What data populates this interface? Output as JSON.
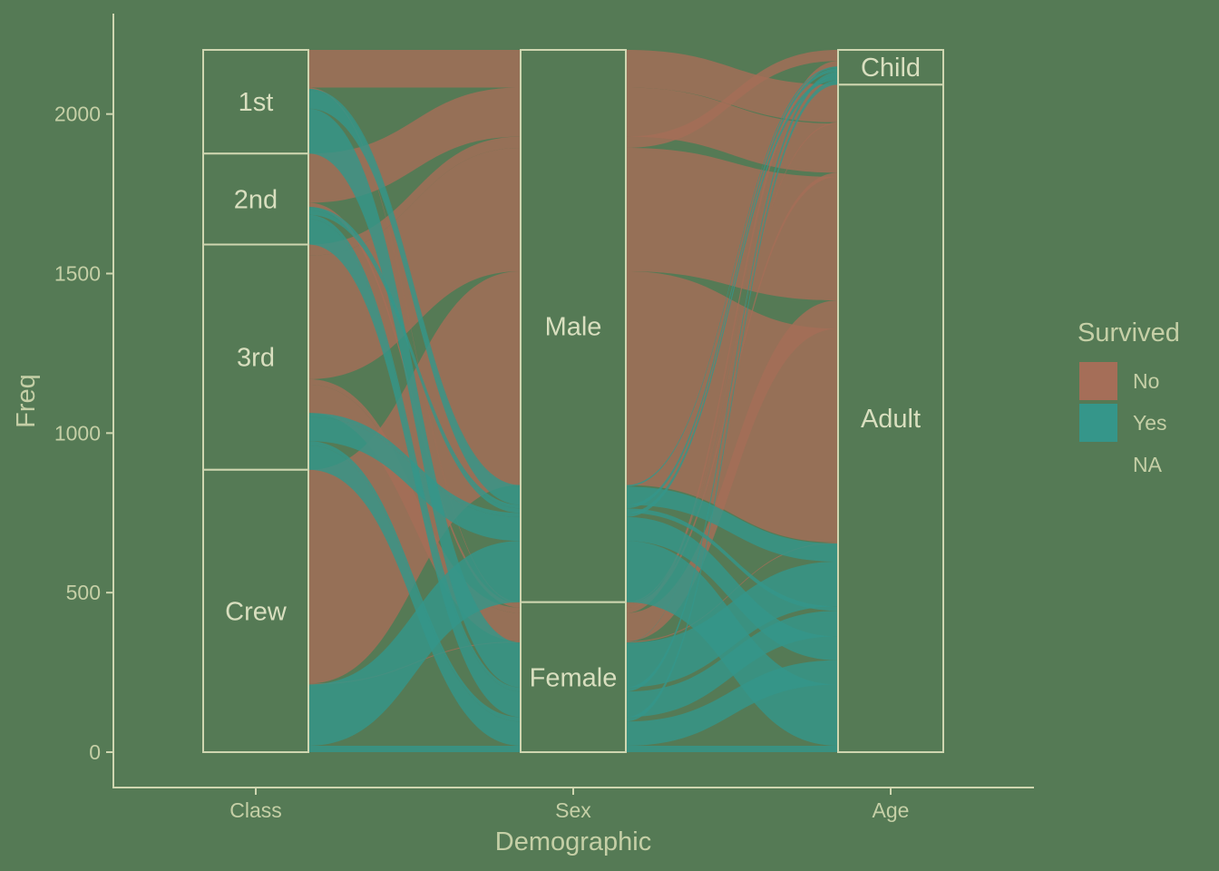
{
  "chart_data": {
    "type": "alluvial",
    "title": "",
    "xlabel": "Demographic",
    "ylabel": "Freq",
    "ylim": [
      0,
      2201
    ],
    "y_ticks": [
      0,
      500,
      1000,
      1500,
      2000
    ],
    "axes": [
      "Class",
      "Sex",
      "Age"
    ],
    "strata": {
      "Class": [
        "1st",
        "2nd",
        "3rd",
        "Crew"
      ],
      "Sex": [
        "Male",
        "Female"
      ],
      "Age": [
        "Child",
        "Adult"
      ]
    },
    "legend": {
      "title": "Survived",
      "position": "right",
      "entries": [
        {
          "label": "No",
          "color": "#a56e58"
        },
        {
          "label": "Yes",
          "color": "#35968a"
        },
        {
          "label": "NA",
          "color": ""
        }
      ]
    },
    "flows": [
      {
        "Class": "1st",
        "Sex": "Male",
        "Age": "Child",
        "Survived": "No",
        "Freq": 0
      },
      {
        "Class": "2nd",
        "Sex": "Male",
        "Age": "Child",
        "Survived": "No",
        "Freq": 0
      },
      {
        "Class": "3rd",
        "Sex": "Male",
        "Age": "Child",
        "Survived": "No",
        "Freq": 35
      },
      {
        "Class": "Crew",
        "Sex": "Male",
        "Age": "Child",
        "Survived": "No",
        "Freq": 0
      },
      {
        "Class": "1st",
        "Sex": "Female",
        "Age": "Child",
        "Survived": "No",
        "Freq": 0
      },
      {
        "Class": "2nd",
        "Sex": "Female",
        "Age": "Child",
        "Survived": "No",
        "Freq": 0
      },
      {
        "Class": "3rd",
        "Sex": "Female",
        "Age": "Child",
        "Survived": "No",
        "Freq": 17
      },
      {
        "Class": "Crew",
        "Sex": "Female",
        "Age": "Child",
        "Survived": "No",
        "Freq": 0
      },
      {
        "Class": "1st",
        "Sex": "Male",
        "Age": "Adult",
        "Survived": "No",
        "Freq": 118
      },
      {
        "Class": "2nd",
        "Sex": "Male",
        "Age": "Adult",
        "Survived": "No",
        "Freq": 154
      },
      {
        "Class": "3rd",
        "Sex": "Male",
        "Age": "Adult",
        "Survived": "No",
        "Freq": 387
      },
      {
        "Class": "Crew",
        "Sex": "Male",
        "Age": "Adult",
        "Survived": "No",
        "Freq": 670
      },
      {
        "Class": "1st",
        "Sex": "Female",
        "Age": "Adult",
        "Survived": "No",
        "Freq": 4
      },
      {
        "Class": "2nd",
        "Sex": "Female",
        "Age": "Adult",
        "Survived": "No",
        "Freq": 13
      },
      {
        "Class": "3rd",
        "Sex": "Female",
        "Age": "Adult",
        "Survived": "No",
        "Freq": 89
      },
      {
        "Class": "Crew",
        "Sex": "Female",
        "Age": "Adult",
        "Survived": "No",
        "Freq": 3
      },
      {
        "Class": "1st",
        "Sex": "Male",
        "Age": "Child",
        "Survived": "Yes",
        "Freq": 5
      },
      {
        "Class": "2nd",
        "Sex": "Male",
        "Age": "Child",
        "Survived": "Yes",
        "Freq": 11
      },
      {
        "Class": "3rd",
        "Sex": "Male",
        "Age": "Child",
        "Survived": "Yes",
        "Freq": 13
      },
      {
        "Class": "Crew",
        "Sex": "Male",
        "Age": "Child",
        "Survived": "Yes",
        "Freq": 0
      },
      {
        "Class": "1st",
        "Sex": "Female",
        "Age": "Child",
        "Survived": "Yes",
        "Freq": 1
      },
      {
        "Class": "2nd",
        "Sex": "Female",
        "Age": "Child",
        "Survived": "Yes",
        "Freq": 13
      },
      {
        "Class": "3rd",
        "Sex": "Female",
        "Age": "Child",
        "Survived": "Yes",
        "Freq": 14
      },
      {
        "Class": "Crew",
        "Sex": "Female",
        "Age": "Child",
        "Survived": "Yes",
        "Freq": 0
      },
      {
        "Class": "1st",
        "Sex": "Male",
        "Age": "Adult",
        "Survived": "Yes",
        "Freq": 57
      },
      {
        "Class": "2nd",
        "Sex": "Male",
        "Age": "Adult",
        "Survived": "Yes",
        "Freq": 14
      },
      {
        "Class": "3rd",
        "Sex": "Male",
        "Age": "Adult",
        "Survived": "Yes",
        "Freq": 75
      },
      {
        "Class": "Crew",
        "Sex": "Male",
        "Age": "Adult",
        "Survived": "Yes",
        "Freq": 192
      },
      {
        "Class": "1st",
        "Sex": "Female",
        "Age": "Adult",
        "Survived": "Yes",
        "Freq": 140
      },
      {
        "Class": "2nd",
        "Sex": "Female",
        "Age": "Adult",
        "Survived": "Yes",
        "Freq": 80
      },
      {
        "Class": "3rd",
        "Sex": "Female",
        "Age": "Adult",
        "Survived": "Yes",
        "Freq": 76
      },
      {
        "Class": "Crew",
        "Sex": "Female",
        "Age": "Adult",
        "Survived": "Yes",
        "Freq": 20
      }
    ]
  },
  "colors": {
    "background": "#557a55",
    "axis": "#cfd6b0",
    "text": "#c5cfa6",
    "No": "#a56e58",
    "Yes": "#35968a"
  }
}
